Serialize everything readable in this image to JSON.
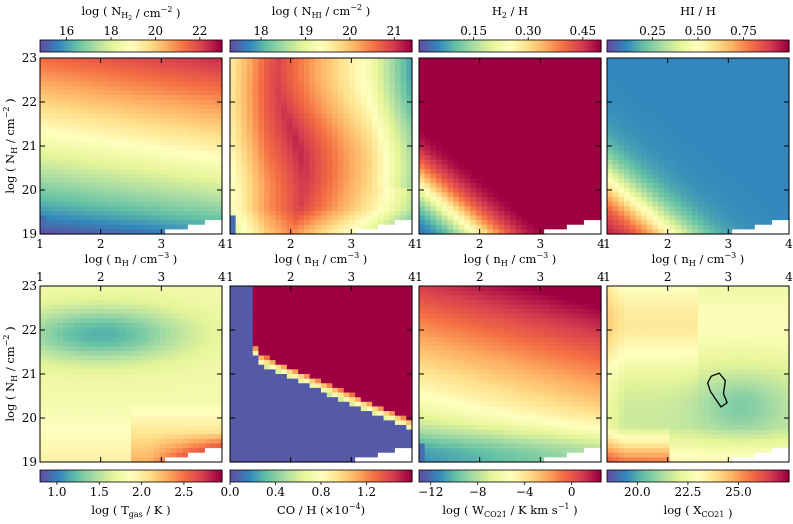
{
  "chart_data": {
    "type": "heatmap",
    "layout": {
      "rows": 2,
      "cols": 4,
      "shared_axes": true
    },
    "x_axis": {
      "label": "log ( n_H / cm^-3 )",
      "range": [
        1,
        4
      ],
      "ticks": [
        "1",
        "2",
        "3",
        "4"
      ]
    },
    "y_axis": {
      "label": "log ( N_H / cm^-2 )",
      "range": [
        19,
        23
      ],
      "ticks": [
        "19",
        "20",
        "21",
        "22",
        "23"
      ]
    },
    "colormap": "Spectral_r",
    "panels": [
      {
        "row": 1,
        "col": 1,
        "quantity": "N_H2",
        "colorbar": {
          "label_main": "log ( N",
          "label_sub": "H",
          "label_subsub": "2",
          "label_tail": " / cm",
          "label_sup": "−2",
          "label_end": " )",
          "range": [
            14.8,
            23
          ],
          "ticks": [
            "16",
            "18",
            "20",
            "22"
          ],
          "tick_values": [
            16,
            18,
            20,
            22
          ],
          "position": "top"
        }
      },
      {
        "row": 1,
        "col": 2,
        "quantity": "N_HI",
        "colorbar": {
          "label_main": "log ( N",
          "label_sub": "HI",
          "label_tail": " / cm",
          "label_sup": "−2",
          "label_end": " )",
          "range": [
            17.3,
            21.4
          ],
          "ticks": [
            "18",
            "19",
            "20",
            "21"
          ],
          "tick_values": [
            18,
            19,
            20,
            21
          ],
          "position": "top"
        }
      },
      {
        "row": 1,
        "col": 3,
        "quantity": "H2_frac",
        "colorbar": {
          "label_main": "H",
          "label_sub": "2",
          "label_tail": " / H",
          "range": [
            0.0,
            0.5
          ],
          "ticks": [
            "0.15",
            "0.30",
            "0.45"
          ],
          "tick_values": [
            0.15,
            0.3,
            0.45
          ],
          "position": "top"
        }
      },
      {
        "row": 1,
        "col": 4,
        "quantity": "HI_frac",
        "colorbar": {
          "label_main": "HI / H",
          "range": [
            0.0,
            1.0
          ],
          "ticks": [
            "0.25",
            "0.50",
            "0.75"
          ],
          "tick_values": [
            0.25,
            0.5,
            0.75
          ],
          "position": "top"
        }
      },
      {
        "row": 2,
        "col": 1,
        "quantity": "T_gas",
        "colorbar": {
          "label_main": "log ( T",
          "label_sub": "gas",
          "label_tail": " / K )",
          "range": [
            0.8,
            2.95
          ],
          "ticks": [
            "1.0",
            "1.5",
            "2.0",
            "2.5"
          ],
          "tick_values": [
            1.0,
            1.5,
            2.0,
            2.5
          ],
          "position": "bottom"
        }
      },
      {
        "row": 2,
        "col": 2,
        "quantity": "CO_abund",
        "colorbar": {
          "label_main": "CO / H (×10",
          "label_sup": "−4",
          "label_end": ")",
          "range": [
            0.0,
            1.6
          ],
          "ticks": [
            "0.0",
            "0.4",
            "0.8",
            "1.2"
          ],
          "tick_values": [
            0.0,
            0.4,
            0.8,
            1.2
          ],
          "position": "bottom"
        }
      },
      {
        "row": 2,
        "col": 3,
        "quantity": "W_CO21",
        "colorbar": {
          "label_main": "log ( W",
          "label_sub": "CO21",
          "label_tail": " / K km s",
          "label_sup": "−1",
          "label_end": " )",
          "range": [
            -13,
            2.5
          ],
          "ticks": [
            "−12",
            "−8",
            "−4",
            "0"
          ],
          "tick_values": [
            -12,
            -8,
            -4,
            0
          ],
          "position": "bottom"
        }
      },
      {
        "row": 2,
        "col": 4,
        "quantity": "X_CO21",
        "colorbar": {
          "label_main": "log ( X",
          "label_sub": "CO21",
          "label_end": " )",
          "range": [
            18.5,
            27.5
          ],
          "ticks": [
            "20.0",
            "22.5",
            "25.0"
          ],
          "tick_values": [
            20.0,
            22.5,
            25.0
          ],
          "position": "bottom"
        }
      }
    ],
    "blank_region": "white staircase at low N_H / high n_H corner (no data)",
    "contour": {
      "panel": 8,
      "color": "#000000"
    }
  },
  "colors": {
    "spectral_r": [
      "#5e4fa2",
      "#3288bd",
      "#66c2a5",
      "#abdda4",
      "#e6f598",
      "#ffffbf",
      "#fee08b",
      "#fdae61",
      "#f46d43",
      "#d53e4f",
      "#9e0142"
    ]
  }
}
